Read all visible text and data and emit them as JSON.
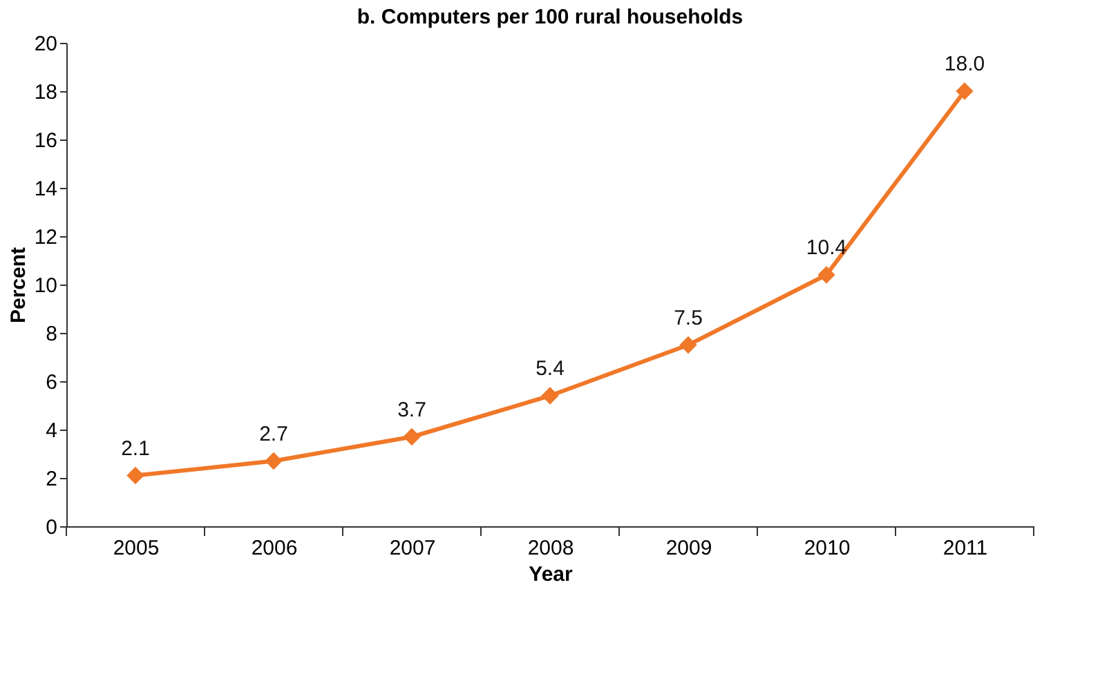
{
  "chart_data": {
    "type": "line",
    "title": "b. Computers per 100 rural households",
    "xlabel": "Year",
    "ylabel": "Percent",
    "categories": [
      "2005",
      "2006",
      "2007",
      "2008",
      "2009",
      "2010",
      "2011"
    ],
    "series": [
      {
        "color": "#f07828",
        "values": [
          2.1,
          2.7,
          3.7,
          5.4,
          7.5,
          10.4,
          18.0
        ],
        "value_labels": [
          "2.1",
          "2.7",
          "3.7",
          "5.4",
          "7.5",
          "10.4",
          "18.0"
        ]
      }
    ],
    "ylim": [
      0,
      20
    ],
    "yticks": [
      0,
      2,
      4,
      6,
      8,
      10,
      12,
      14,
      16,
      18,
      20
    ],
    "grid": false,
    "legend": false,
    "marker": "diamond",
    "line_style": "solid"
  }
}
